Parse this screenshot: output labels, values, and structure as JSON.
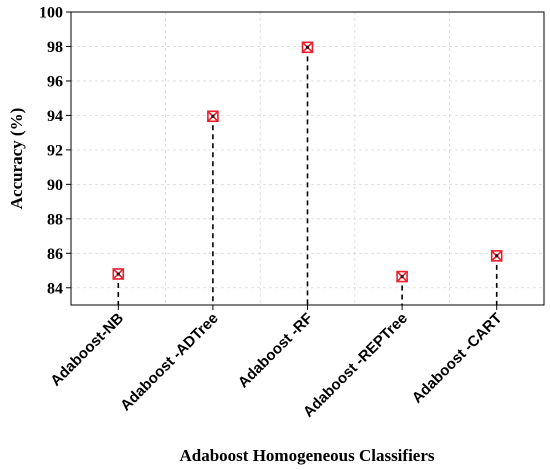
{
  "chart_data": {
    "type": "scatter",
    "title": "",
    "xlabel": "Adaboost Homogeneous Classifiers",
    "ylabel": "Accuracy (%)",
    "categories": [
      "Adaboost-NB",
      "Adaboost -ADTree",
      "Adaboost -RF",
      "Adaboost -REPTree",
      "Adaboost -CART"
    ],
    "values": [
      84.8,
      93.95,
      97.95,
      84.65,
      85.85
    ],
    "ylim": [
      83,
      100
    ],
    "yticks": [
      84,
      86,
      88,
      90,
      92,
      94,
      96,
      98,
      100
    ],
    "grid": true,
    "marker_color": "#e8202a",
    "stem_color": "#000000",
    "stem_style": "dashed"
  }
}
